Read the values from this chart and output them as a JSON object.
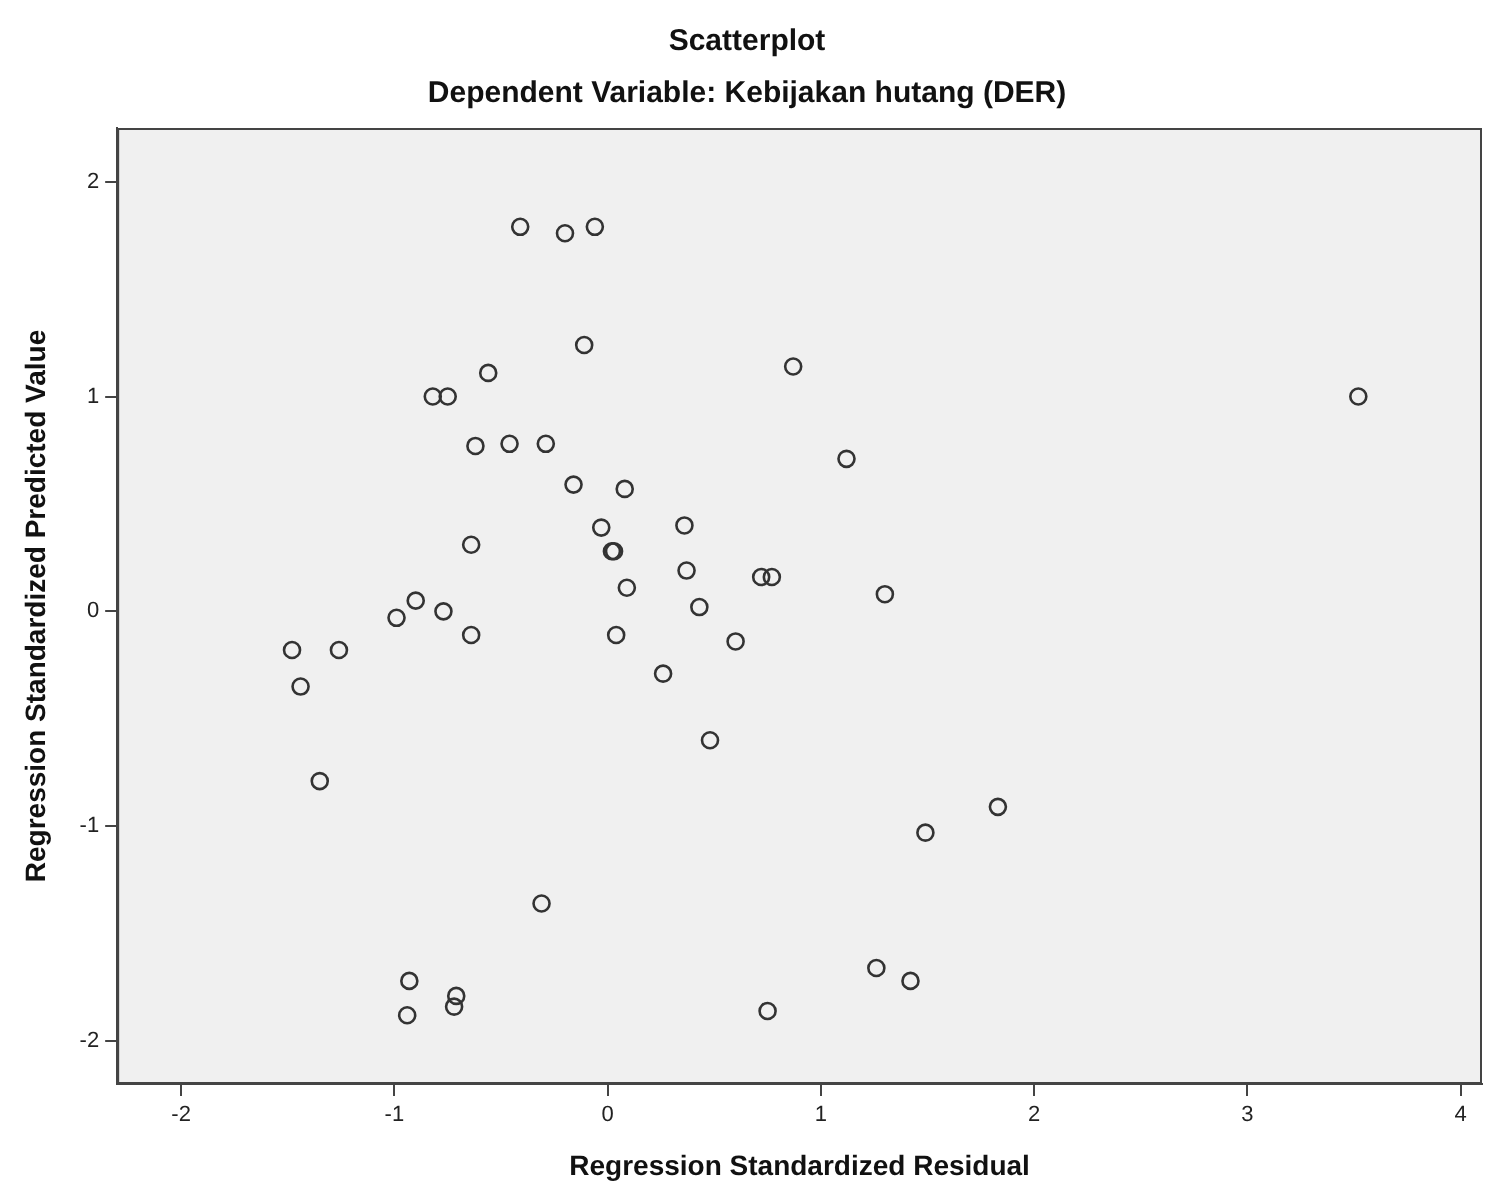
{
  "chart_data": {
    "type": "scatter",
    "title": "Scatterplot",
    "subtitle": "Dependent Variable: Kebijakan hutang (DER)",
    "xlabel": "Regression Standardized Residual",
    "ylabel": "Regression Standardized Predicted Value",
    "xlim": [
      -2.3,
      4.1
    ],
    "xticks": [
      -2,
      -1,
      0,
      1,
      2,
      3,
      4
    ],
    "ylim": [
      -2.2,
      2.25
    ],
    "yticks": [
      -2,
      -1,
      0,
      1,
      2
    ],
    "grid": false,
    "legend": false,
    "marker": "circle",
    "series": [
      {
        "color": "#333333",
        "x": [
          -0.41,
          -0.2,
          -0.06,
          -0.11,
          -0.56,
          -0.82,
          -0.75,
          -0.62,
          -0.46,
          -0.29,
          -0.16,
          0.08,
          -0.03,
          -0.64,
          0.02,
          0.03,
          0.36,
          0.37,
          0.09,
          0.43,
          0.72,
          0.77,
          1.3,
          1.12,
          0.87,
          3.52,
          -0.9,
          -0.99,
          -0.77,
          -0.64,
          -1.48,
          -1.26,
          -1.44,
          -1.35,
          0.04,
          0.26,
          0.6,
          0.48,
          1.49,
          1.83,
          -0.31,
          -0.93,
          -0.71,
          -0.72,
          -0.94,
          0.75,
          1.26,
          1.42
        ],
        "values": [
          1.79,
          1.76,
          1.79,
          1.24,
          1.11,
          1.0,
          1.0,
          0.77,
          0.78,
          0.78,
          0.59,
          0.57,
          0.39,
          0.31,
          0.28,
          0.28,
          0.4,
          0.19,
          0.11,
          0.02,
          0.16,
          0.16,
          0.08,
          0.71,
          1.14,
          1.0,
          0.05,
          -0.03,
          0.0,
          -0.11,
          -0.18,
          -0.18,
          -0.35,
          -0.79,
          -0.11,
          -0.29,
          -0.14,
          -0.6,
          -1.03,
          -0.91,
          -1.36,
          -1.72,
          -1.79,
          -1.84,
          -1.88,
          -1.86,
          -1.66,
          -1.72
        ]
      }
    ]
  }
}
